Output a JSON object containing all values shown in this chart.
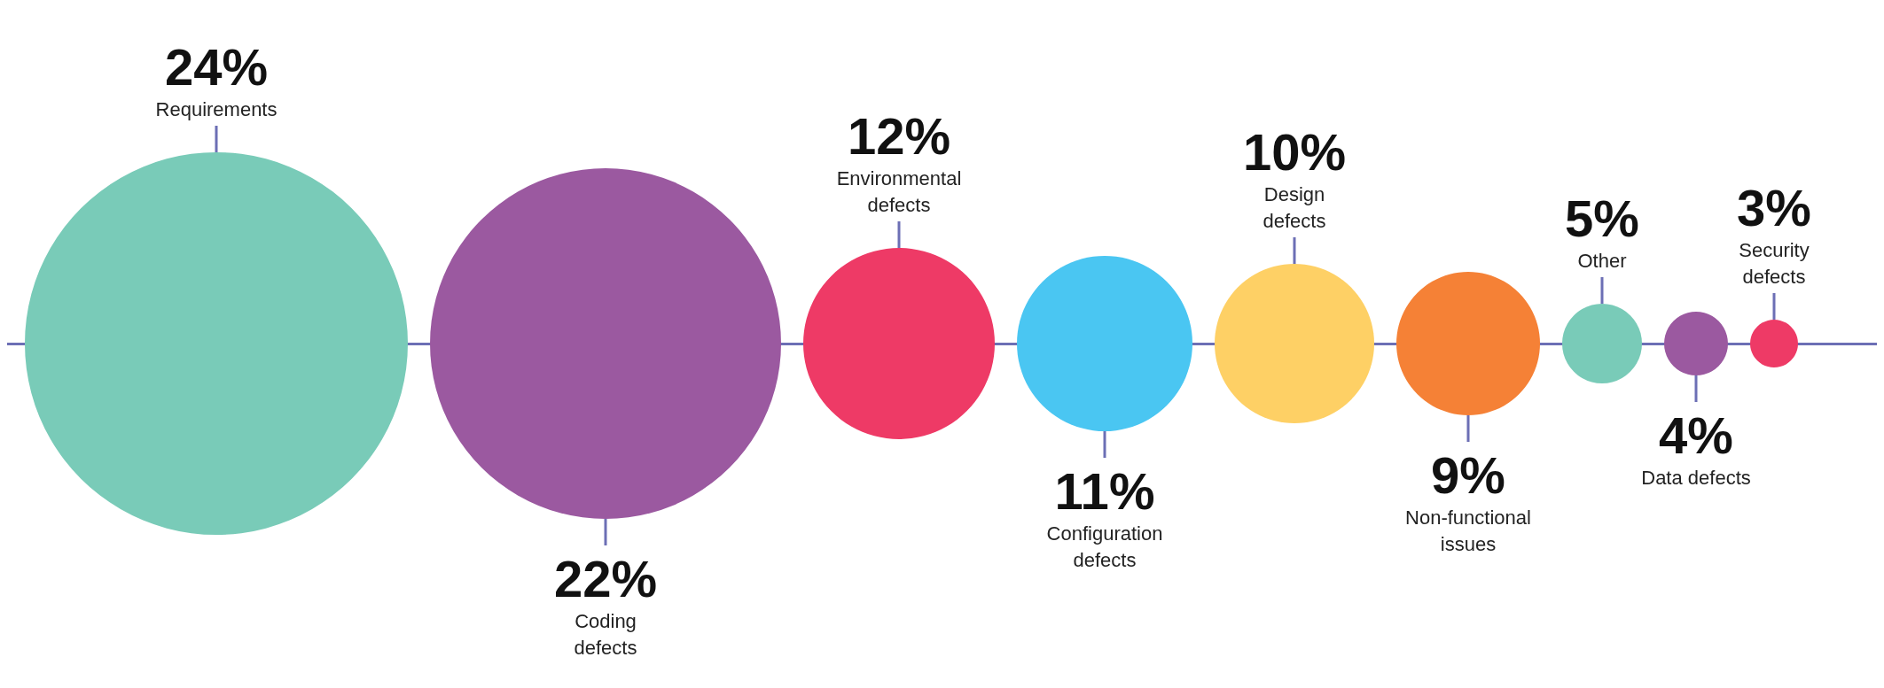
{
  "chart_data": {
    "type": "other",
    "categories": [
      "Requirements",
      "Coding defects",
      "Environmental defects",
      "Configuration defects",
      "Design defects",
      "Non-functional issues",
      "Other",
      "Data defects",
      "Security defects"
    ],
    "values": [
      24,
      22,
      12,
      11,
      10,
      9,
      5,
      4,
      3
    ],
    "value_labels": [
      "24%",
      "22%",
      "12%",
      "11%",
      "10%",
      "9%",
      "5%",
      "4%",
      "3%"
    ],
    "colors": [
      "#79cbb8",
      "#9b59a0",
      "#ee3a66",
      "#4ac6f2",
      "#fed065",
      "#f58136",
      "#79cbb8",
      "#9b59a0",
      "#ee3a66"
    ]
  }
}
